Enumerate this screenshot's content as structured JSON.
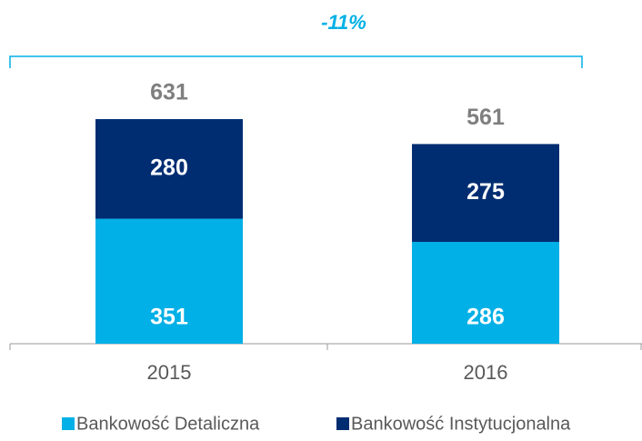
{
  "chart_data": {
    "type": "stacked_bar",
    "annotation": "-11%",
    "categories": [
      "2015",
      "2016"
    ],
    "series": [
      {
        "name": "Bankowość Detaliczna",
        "color": "#00b0e6",
        "values": [
          351,
          286
        ]
      },
      {
        "name": "Bankowość Instytucjonalna",
        "color": "#002d72",
        "values": [
          280,
          275
        ]
      }
    ],
    "totals": [
      631,
      561
    ]
  }
}
